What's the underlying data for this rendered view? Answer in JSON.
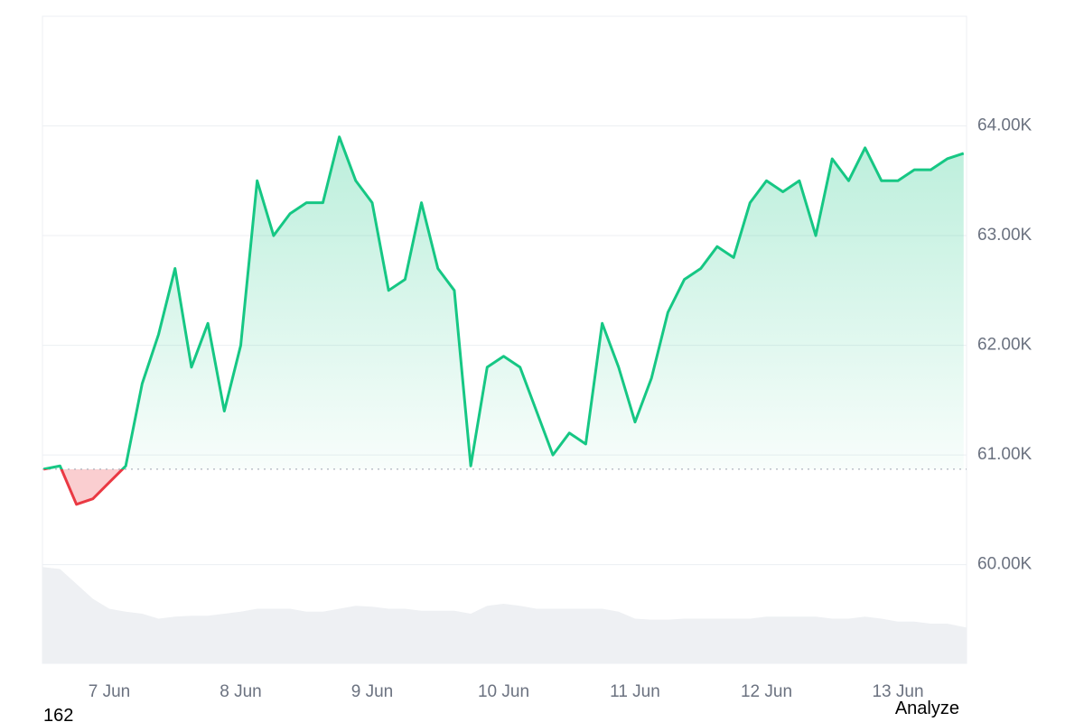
{
  "chart_data": {
    "type": "line",
    "categories": [
      null,
      null,
      null,
      null,
      "7 Jun",
      null,
      null,
      null,
      null,
      null,
      null,
      null,
      "8 Jun",
      null,
      null,
      null,
      null,
      null,
      null,
      null,
      "9 Jun",
      null,
      null,
      null,
      null,
      null,
      null,
      null,
      "10 Jun",
      null,
      null,
      null,
      null,
      null,
      null,
      null,
      "11 Jun",
      null,
      null,
      null,
      null,
      null,
      null,
      null,
      "12 Jun",
      null,
      null,
      null,
      null,
      null,
      null,
      null,
      "13 Jun",
      null,
      null,
      null,
      null
    ],
    "series": [
      {
        "values": [
          60870,
          60900,
          60550,
          60600,
          60750,
          60900,
          61650,
          62100,
          62700,
          61800,
          62200,
          61400,
          62000,
          63500,
          63000,
          63200,
          63300,
          63300,
          63900,
          63500,
          63300,
          62500,
          62600,
          63300,
          62700,
          62500,
          60900,
          61800,
          61900,
          61800,
          61400,
          61000,
          61200,
          61100,
          62200,
          61800,
          61300,
          61700,
          62300,
          62600,
          62700,
          62900,
          62800,
          63300,
          63500,
          63400,
          63500,
          63000,
          63700,
          63500,
          63800,
          63500,
          63500,
          63600,
          63600,
          63700,
          63750
        ]
      }
    ],
    "up_color": "#16c784",
    "down_color": "#ea3943",
    "baseline": 60870,
    "ylim": [
      59100,
      65000
    ],
    "yticks": [
      {
        "value": 60000,
        "label": "60.00K"
      },
      {
        "value": 61000,
        "label": "61.00K"
      },
      {
        "value": 62000,
        "label": "62.00K"
      },
      {
        "value": 63000,
        "label": "63.00K"
      },
      {
        "value": 64000,
        "label": "64.00K"
      }
    ],
    "grid": true,
    "volume": {
      "color": "#eef0f3",
      "lim": [
        0,
        100
      ],
      "values": [
        97,
        95,
        80,
        65,
        55,
        52,
        50,
        45,
        47,
        48,
        48,
        50,
        52,
        55,
        55,
        55,
        52,
        52,
        55,
        58,
        57,
        55,
        55,
        53,
        53,
        53,
        50,
        58,
        60,
        58,
        55,
        55,
        55,
        55,
        55,
        52,
        45,
        44,
        44,
        45,
        45,
        45,
        45,
        45,
        47,
        47,
        47,
        47,
        45,
        45,
        47,
        45,
        42,
        42,
        40,
        40,
        36
      ]
    }
  },
  "footer": {
    "left": "162",
    "button": "Analyze"
  }
}
